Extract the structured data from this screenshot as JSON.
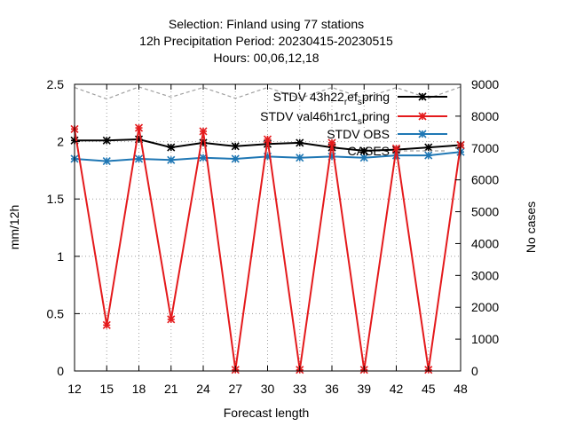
{
  "chart_data": {
    "type": "line",
    "title_lines": [
      "Selection: Finland using    77 stations",
      "12h Precipitation   Period: 20230415-20230515",
      "Hours:  00,06,12,18"
    ],
    "xlabel": "Forecast length",
    "ylabel": "mm/12h",
    "y2label": "No cases",
    "x": [
      12,
      15,
      18,
      21,
      24,
      27,
      30,
      33,
      36,
      39,
      42,
      45,
      48
    ],
    "xlim": [
      12,
      48
    ],
    "ylim": [
      0,
      2.5
    ],
    "y2lim": [
      0,
      9000
    ],
    "yticks": [
      "0",
      "0.5",
      "1",
      "1.5",
      "2",
      "2.5"
    ],
    "y2ticks": [
      "0",
      "1000",
      "2000",
      "3000",
      "4000",
      "5000",
      "6000",
      "7000",
      "8000",
      "9000"
    ],
    "grid": true,
    "legend_position": "top-right",
    "series": [
      {
        "name": "STDV 43h22_ref_spring",
        "legend_parts": [
          {
            "text": "STDV 43h22",
            "sub": false
          },
          {
            "text": "r",
            "sub": true
          },
          {
            "text": "ef",
            "sub": false
          },
          {
            "text": "s",
            "sub": true
          },
          {
            "text": "pring",
            "sub": false
          }
        ],
        "color": "#000000",
        "axis": "left",
        "marker": "star",
        "values": [
          2.01,
          2.01,
          2.02,
          1.95,
          1.99,
          1.96,
          1.98,
          1.99,
          1.95,
          1.92,
          1.93,
          1.95,
          1.97
        ]
      },
      {
        "name": "STDV val46h1rc1_spring",
        "legend_parts": [
          {
            "text": "STDV val46h1rc1",
            "sub": false
          },
          {
            "text": "s",
            "sub": true
          },
          {
            "text": "pring",
            "sub": false
          }
        ],
        "color": "#e41a1c",
        "axis": "left",
        "marker": "star",
        "values": [
          2.11,
          0.4,
          2.12,
          0.45,
          2.09,
          0.01,
          2.02,
          0.01,
          1.99,
          0.01,
          1.94,
          0.01,
          1.97
        ]
      },
      {
        "name": "STDV OBS",
        "legend_parts": [
          {
            "text": "STDV OBS",
            "sub": false
          }
        ],
        "color": "#1f77b4",
        "axis": "left",
        "marker": "star",
        "values": [
          1.85,
          1.83,
          1.85,
          1.84,
          1.86,
          1.85,
          1.87,
          1.86,
          1.87,
          1.86,
          1.88,
          1.88,
          1.91
        ]
      },
      {
        "name": "CASES",
        "legend_parts": [
          {
            "text": "CASES",
            "sub": false
          }
        ],
        "color": "#a0a0a0",
        "axis": "right",
        "marker": "none",
        "dashed": true,
        "values": [
          8900,
          8540,
          8920,
          8600,
          8900,
          8560,
          8900,
          8560,
          8900,
          8560,
          8900,
          8560,
          8920
        ]
      }
    ]
  }
}
